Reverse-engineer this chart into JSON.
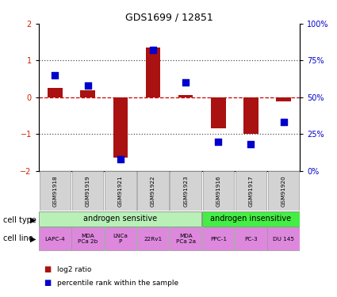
{
  "title": "GDS1699 / 12851",
  "samples": [
    "GSM91918",
    "GSM91919",
    "GSM91921",
    "GSM91922",
    "GSM91923",
    "GSM91916",
    "GSM91917",
    "GSM91920"
  ],
  "log2_ratio": [
    0.25,
    0.2,
    -1.65,
    1.35,
    0.05,
    -0.85,
    -1.0,
    -0.12
  ],
  "percentile_rank": [
    65,
    58,
    8,
    82,
    60,
    20,
    18,
    33
  ],
  "ylim_left": [
    -2,
    2
  ],
  "ylim_right": [
    0,
    100
  ],
  "yticks_left": [
    -2,
    -1,
    0,
    1,
    2
  ],
  "yticks_right": [
    0,
    25,
    50,
    75,
    100
  ],
  "ytick_labels_right": [
    "0%",
    "25%",
    "50%",
    "75%",
    "100%"
  ],
  "bar_color": "#aa1111",
  "dot_color": "#0000cc",
  "cell_type_groups": [
    {
      "label": "androgen sensitive",
      "start": 0,
      "end": 5,
      "color": "#b8f0b8"
    },
    {
      "label": "androgen insensitive",
      "start": 5,
      "end": 8,
      "color": "#44ee44"
    }
  ],
  "cell_lines": [
    "LAPC-4",
    "MDA\nPCa 2b",
    "LNCa\nP",
    "22Rv1",
    "MDA\nPCa 2a",
    "PPC-1",
    "PC-3",
    "DU 145"
  ],
  "cell_line_color": "#dd88dd",
  "sample_box_color": "#d3d3d3",
  "legend_items": [
    {
      "label": "log2 ratio",
      "color": "#aa1111"
    },
    {
      "label": "percentile rank within the sample",
      "color": "#0000cc"
    }
  ],
  "dotted_line_color": "#555555",
  "zero_line_color": "#cc0000",
  "left_tick_color": "#cc2200",
  "right_tick_color": "#0000cc"
}
